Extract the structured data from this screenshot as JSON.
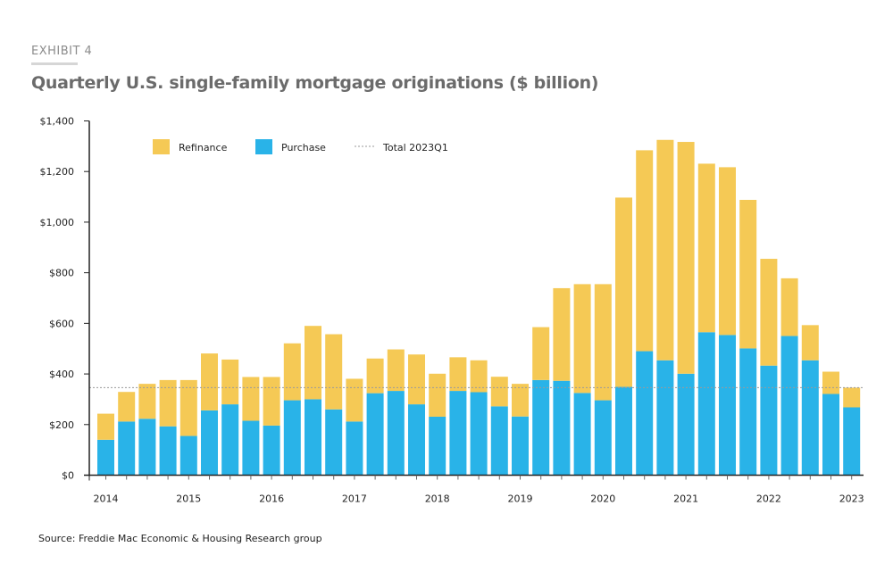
{
  "header": {
    "exhibit": "EXHIBIT 4",
    "title": "Quarterly U.S. single-family mortgage originations ($ billion)"
  },
  "source": "Source: Freddie Mac Economic & Housing Research group",
  "colors": {
    "refinance": "#F5C955",
    "purchase": "#29B3E8",
    "reference_line": "#9a9a9a",
    "axis": "#222222"
  },
  "chart_data": {
    "type": "bar",
    "stacked": true,
    "title": "Quarterly U.S. single-family mortgage originations ($ billion)",
    "xlabel": "",
    "ylabel": "",
    "ylim": [
      0,
      1400
    ],
    "yticks": [
      0,
      200,
      400,
      600,
      800,
      1000,
      1200,
      1400
    ],
    "ytick_labels": [
      "$0",
      "$200",
      "$400",
      "$600",
      "$800",
      "$1,000",
      "$1,200",
      "$1,400"
    ],
    "grid": false,
    "legend_position": "top-left",
    "categories": [
      "2014Q1",
      "2014Q2",
      "2014Q3",
      "2014Q4",
      "2015Q1",
      "2015Q2",
      "2015Q3",
      "2015Q4",
      "2016Q1",
      "2016Q2",
      "2016Q3",
      "2016Q4",
      "2017Q1",
      "2017Q2",
      "2017Q3",
      "2017Q4",
      "2018Q1",
      "2018Q2",
      "2018Q3",
      "2018Q4",
      "2019Q1",
      "2019Q2",
      "2019Q3",
      "2019Q4",
      "2020Q1",
      "2020Q2",
      "2020Q3",
      "2020Q4",
      "2021Q1",
      "2021Q2",
      "2021Q3",
      "2021Q4",
      "2022Q1",
      "2022Q2",
      "2022Q3",
      "2022Q4",
      "2023Q1"
    ],
    "xtick_labels": [
      {
        "index": 0,
        "label": "2014"
      },
      {
        "index": 4,
        "label": "2015"
      },
      {
        "index": 8,
        "label": "2016"
      },
      {
        "index": 12,
        "label": "2017"
      },
      {
        "index": 16,
        "label": "2018"
      },
      {
        "index": 20,
        "label": "2019"
      },
      {
        "index": 24,
        "label": "2020"
      },
      {
        "index": 28,
        "label": "2021"
      },
      {
        "index": 32,
        "label": "2022"
      },
      {
        "index": 36,
        "label": "2023"
      }
    ],
    "series": [
      {
        "name": "Purchase",
        "values": [
          140,
          212,
          223,
          193,
          155,
          256,
          280,
          215,
          196,
          296,
          300,
          260,
          212,
          324,
          333,
          280,
          231,
          333,
          328,
          272,
          232,
          376,
          373,
          325,
          296,
          349,
          490,
          454,
          401,
          565,
          554,
          501,
          433,
          550,
          454,
          321,
          268
        ]
      },
      {
        "name": "Refinance",
        "values": [
          103,
          117,
          138,
          183,
          221,
          225,
          177,
          173,
          192,
          225,
          290,
          297,
          169,
          137,
          164,
          197,
          170,
          133,
          126,
          117,
          129,
          209,
          366,
          430,
          459,
          748,
          794,
          871,
          916,
          666,
          663,
          587,
          422,
          228,
          139,
          88,
          78
        ]
      }
    ],
    "totals": [
      243,
      329,
      361,
      376,
      376,
      481,
      457,
      388,
      388,
      521,
      590,
      557,
      381,
      461,
      497,
      477,
      401,
      466,
      454,
      389,
      361,
      585,
      739,
      755,
      755,
      1097,
      1284,
      1325,
      1317,
      1231,
      1217,
      1088,
      855,
      778,
      593,
      409,
      346
    ],
    "reference_line": {
      "name": "Total 2023Q1",
      "value": 346,
      "style": "dotted"
    },
    "legend": [
      {
        "name": "Refinance",
        "type": "swatch"
      },
      {
        "name": "Purchase",
        "type": "swatch"
      },
      {
        "name": "Total 2023Q1",
        "type": "dotted-line"
      }
    ]
  }
}
